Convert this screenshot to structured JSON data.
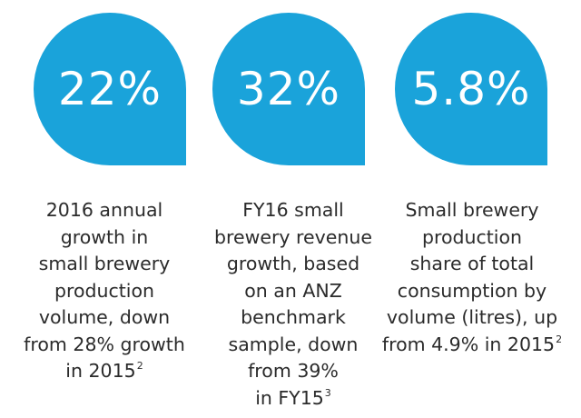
{
  "stats": [
    {
      "value": "22%",
      "caption_lines": [
        "2016 annual",
        "growth in",
        "small brewery",
        "production",
        "volume, down",
        "from 28% growth",
        "in 2015"
      ],
      "footnote": "2"
    },
    {
      "value": "32%",
      "caption_lines": [
        "FY16 small",
        "brewery revenue",
        "growth, based",
        "on an ANZ",
        "benchmark",
        "sample, down",
        "from 39%",
        "in FY15"
      ],
      "footnote": "3"
    },
    {
      "value": "5.8%",
      "caption_lines": [
        "Small brewery",
        "production",
        "share of total",
        "consumption by",
        "volume (litres), up",
        "from 4.9% in 2015"
      ],
      "footnote": "2"
    }
  ],
  "colors": {
    "accent": "#1aa3da",
    "text": "#2b2b2b",
    "background": "#ffffff"
  }
}
